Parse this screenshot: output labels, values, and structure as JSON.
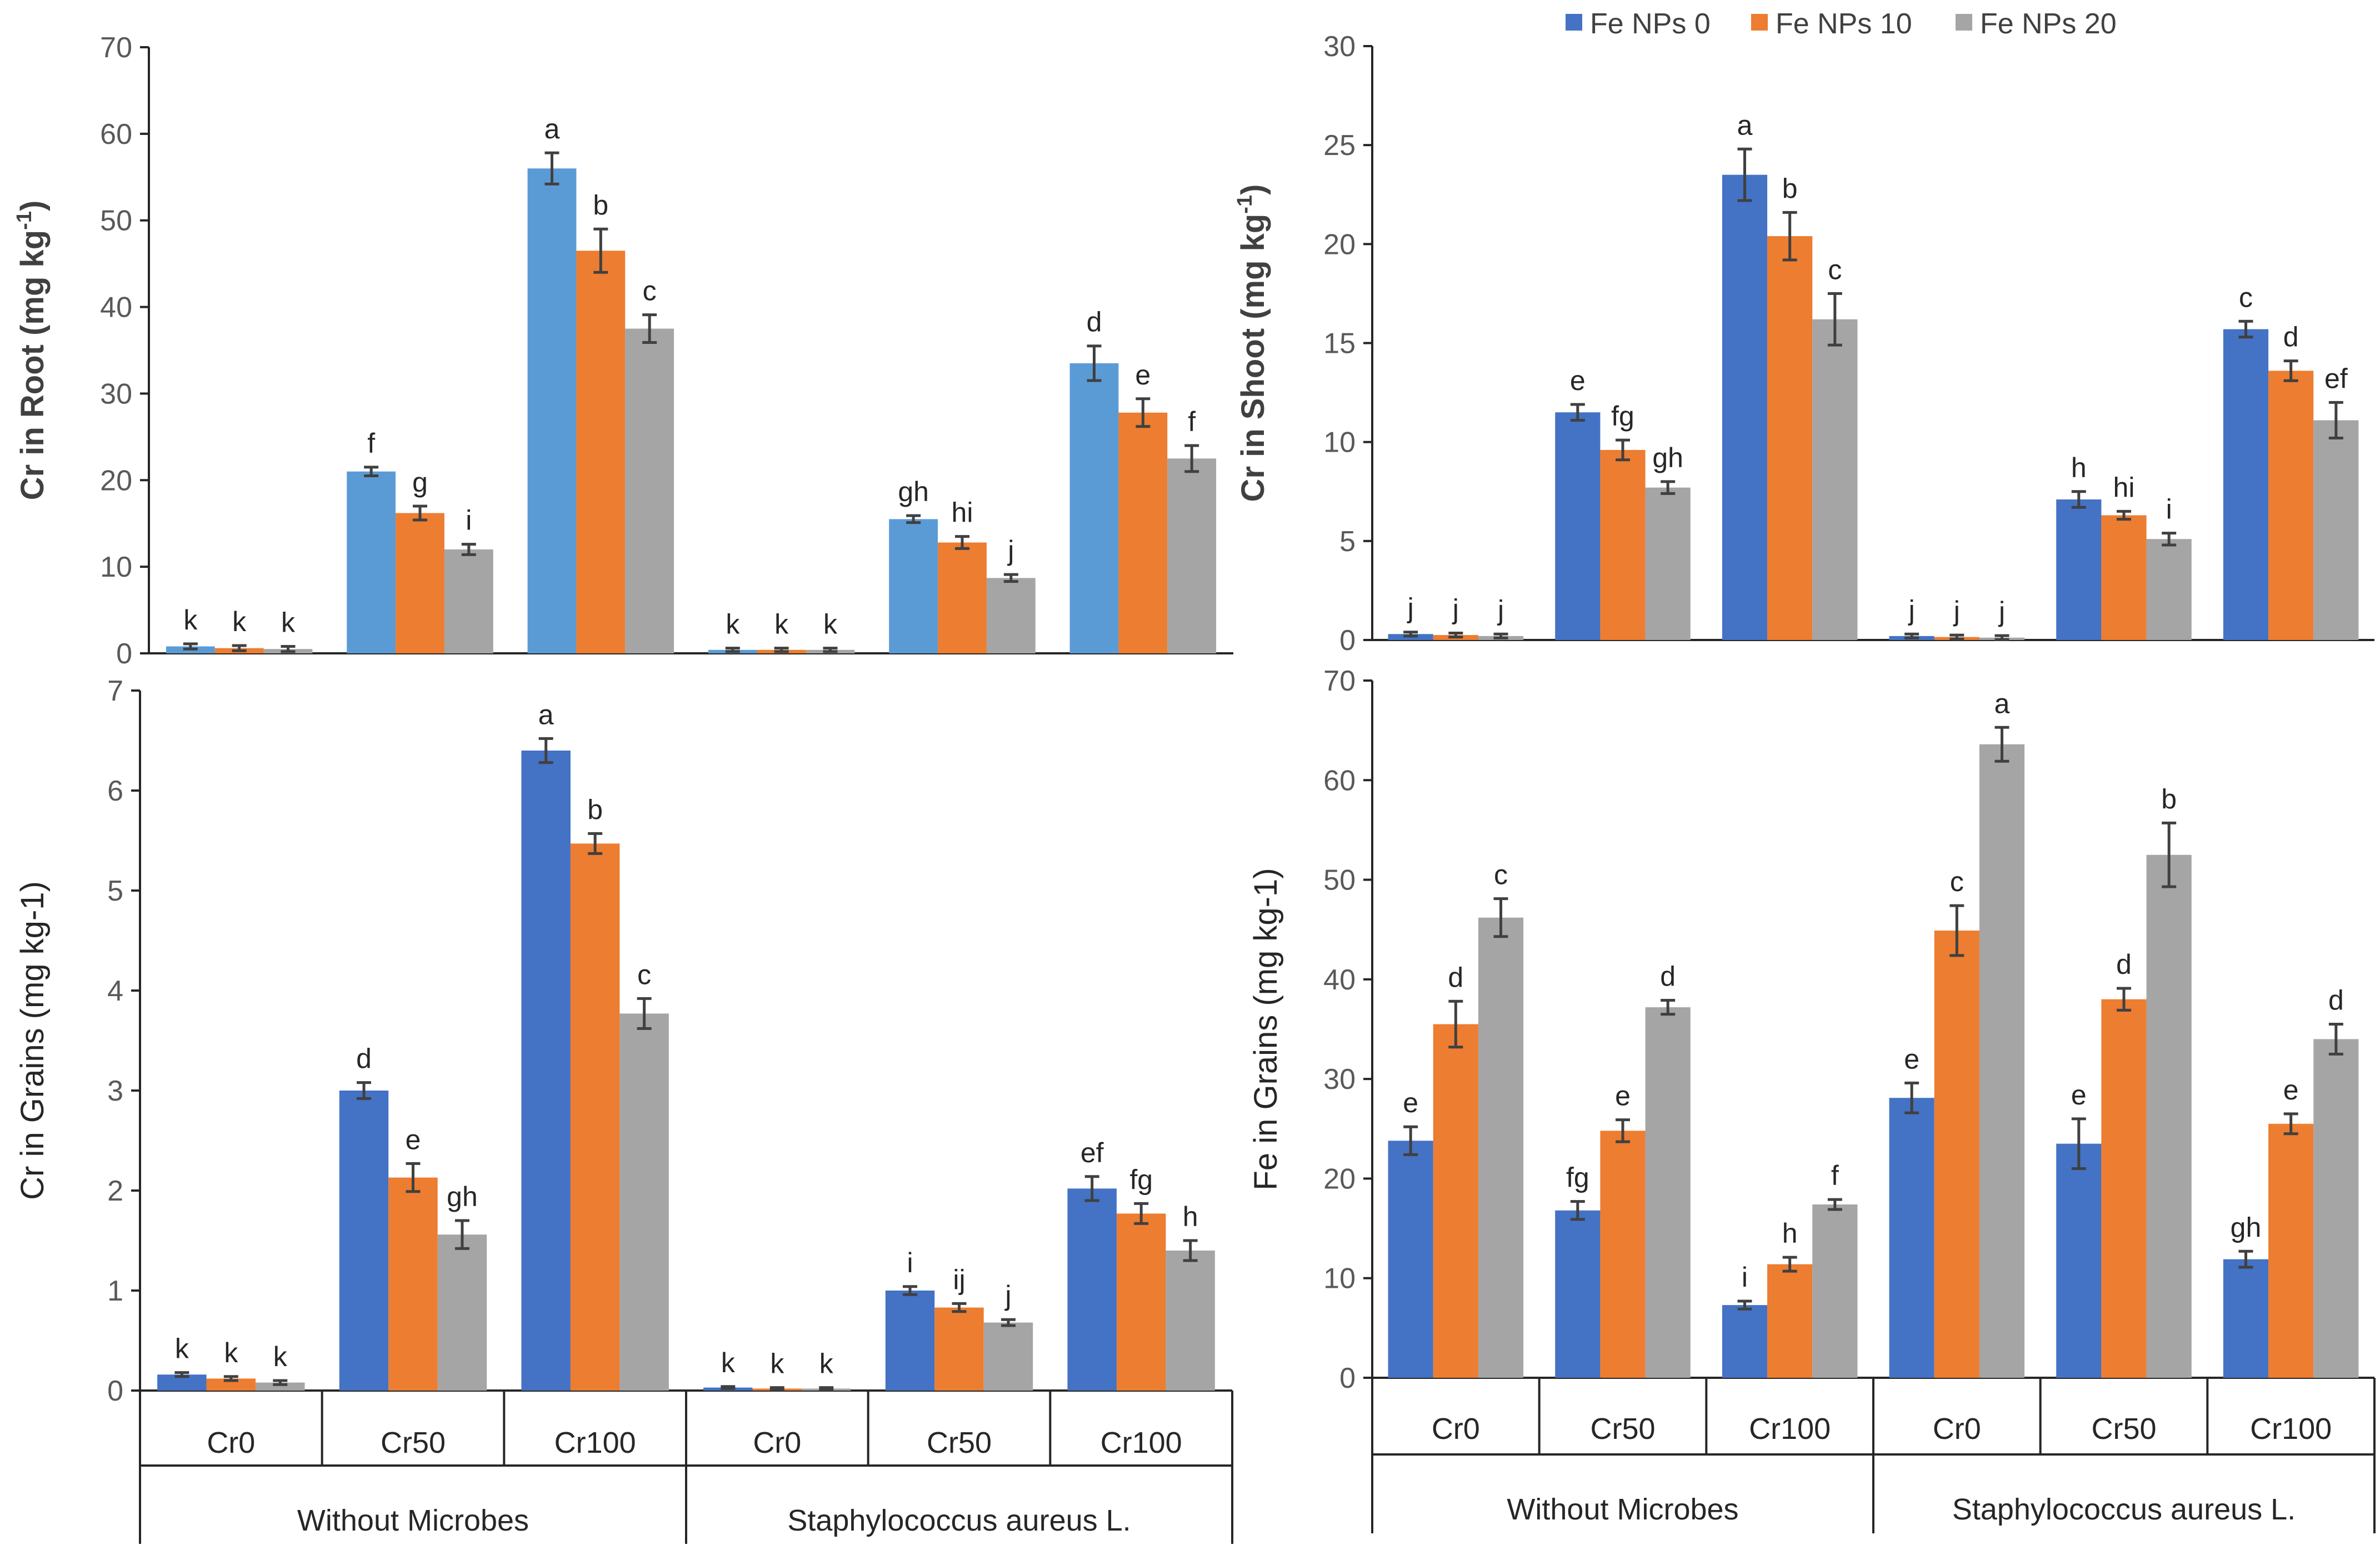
{
  "legend": {
    "series": [
      "Fe NPs 0",
      "Fe NPs 10",
      "Fe NPs 20"
    ],
    "colors": [
      "#4472C4",
      "#ED7D31",
      "#A5A5A5"
    ]
  },
  "chart_data": [
    {
      "id": "root",
      "type": "bar",
      "ylabel": "Cr in Root (mg kg",
      "ylabel_sup": "-1",
      "ylabel_end": ")",
      "ylim": [
        0,
        70
      ],
      "yticks": [
        0,
        10,
        20,
        30,
        40,
        50,
        60,
        70
      ],
      "categories": [
        "Cr0",
        "Cr50",
        "Cr100",
        "Cr0",
        "Cr50",
        "Cr100"
      ],
      "groups": [
        "Without Microbes",
        "Staphylococcus aureus L."
      ],
      "colors": [
        "#5B9BD5",
        "#ED7D31",
        "#A5A5A5"
      ],
      "series": [
        {
          "name": "Fe NPs 0",
          "values": [
            0.8,
            21,
            56,
            0.4,
            15.5,
            33.5
          ],
          "errors": [
            0.3,
            0.5,
            1.8,
            0.2,
            0.4,
            2
          ],
          "labels": [
            "k",
            "f",
            "a",
            "k",
            "gh",
            "d"
          ]
        },
        {
          "name": "Fe NPs 10",
          "values": [
            0.6,
            16.2,
            46.5,
            0.4,
            12.8,
            27.8
          ],
          "errors": [
            0.3,
            0.8,
            2.5,
            0.2,
            0.7,
            1.6
          ],
          "labels": [
            "k",
            "g",
            "b",
            "k",
            "hi",
            "e"
          ]
        },
        {
          "name": "Fe NPs 20",
          "values": [
            0.5,
            12,
            37.5,
            0.4,
            8.7,
            22.5
          ],
          "errors": [
            0.3,
            0.6,
            1.6,
            0.2,
            0.4,
            1.5
          ],
          "labels": [
            "k",
            "i",
            "c",
            "k",
            "j",
            "f"
          ]
        }
      ]
    },
    {
      "id": "shoot",
      "type": "bar",
      "ylabel": "Cr in Shoot (mg kg",
      "ylabel_sup": "-1",
      "ylabel_end": ")",
      "ylim": [
        0,
        30
      ],
      "yticks": [
        0,
        5,
        10,
        15,
        20,
        25,
        30
      ],
      "categories": [
        "Cr0",
        "Cr50",
        "Cr100",
        "Cr0",
        "Cr50",
        "Cr100"
      ],
      "groups": [
        "Without Microbes",
        "Staphylococcus aureus L."
      ],
      "colors": [
        "#4472C4",
        "#ED7D31",
        "#A5A5A5"
      ],
      "series": [
        {
          "name": "Fe NPs 0",
          "values": [
            0.3,
            11.5,
            23.5,
            0.2,
            7.1,
            15.7
          ],
          "errors": [
            0.1,
            0.4,
            1.3,
            0.1,
            0.4,
            0.4
          ],
          "labels": [
            "j",
            "e",
            "a",
            "j",
            "h",
            "c"
          ]
        },
        {
          "name": "Fe NPs 10",
          "values": [
            0.25,
            9.6,
            20.4,
            0.15,
            6.3,
            13.6
          ],
          "errors": [
            0.1,
            0.5,
            1.2,
            0.1,
            0.2,
            0.5
          ],
          "labels": [
            "j",
            "fg",
            "b",
            "j",
            "hi",
            "d"
          ]
        },
        {
          "name": "Fe NPs 20",
          "values": [
            0.2,
            7.7,
            16.2,
            0.12,
            5.1,
            11.1
          ],
          "errors": [
            0.1,
            0.3,
            1.3,
            0.1,
            0.3,
            0.9
          ],
          "labels": [
            "j",
            "gh",
            "c",
            "j",
            "i",
            "ef"
          ]
        }
      ]
    },
    {
      "id": "grains_cr",
      "type": "bar",
      "ylabel": "Cr in Grains (mg kg-1)",
      "ylim": [
        0,
        7
      ],
      "yticks": [
        0,
        1,
        2,
        3,
        4,
        5,
        6,
        7
      ],
      "categories": [
        "Cr0",
        "Cr50",
        "Cr100",
        "Cr0",
        "Cr50",
        "Cr100"
      ],
      "groups": [
        "Without Microbes",
        "Staphylococcus aureus L."
      ],
      "colors": [
        "#4472C4",
        "#ED7D31",
        "#A5A5A5"
      ],
      "series": [
        {
          "name": "Fe NPs 0",
          "values": [
            0.16,
            3.0,
            6.4,
            0.03,
            1.0,
            2.02
          ],
          "errors": [
            0.02,
            0.08,
            0.12,
            0.01,
            0.04,
            0.12
          ],
          "labels": [
            "k",
            "d",
            "a",
            "k",
            "i",
            "ef"
          ]
        },
        {
          "name": "Fe NPs 10",
          "values": [
            0.12,
            2.13,
            5.47,
            0.02,
            0.83,
            1.77
          ],
          "errors": [
            0.02,
            0.14,
            0.1,
            0.01,
            0.04,
            0.1
          ],
          "labels": [
            "k",
            "e",
            "b",
            "k",
            "ij",
            "fg"
          ]
        },
        {
          "name": "Fe NPs 20",
          "values": [
            0.08,
            1.56,
            3.77,
            0.02,
            0.68,
            1.4
          ],
          "errors": [
            0.02,
            0.14,
            0.15,
            0.01,
            0.03,
            0.1
          ],
          "labels": [
            "k",
            "gh",
            "c",
            "k",
            "j",
            "h"
          ]
        }
      ]
    },
    {
      "id": "grains_fe",
      "type": "bar",
      "ylabel": "Fe in Grains (mg kg-1)",
      "ylim": [
        0,
        70
      ],
      "yticks": [
        0,
        10,
        20,
        30,
        40,
        50,
        60,
        70
      ],
      "categories": [
        "Cr0",
        "Cr50",
        "Cr100",
        "Cr0",
        "Cr50",
        "Cr100"
      ],
      "groups": [
        "Without Microbes",
        "Staphylococcus aureus L."
      ],
      "colors": [
        "#4472C4",
        "#ED7D31",
        "#A5A5A5"
      ],
      "series": [
        {
          "name": "Fe NPs 0",
          "values": [
            23.8,
            16.8,
            7.3,
            28.1,
            23.5,
            11.9
          ],
          "errors": [
            1.4,
            0.9,
            0.4,
            1.5,
            2.5,
            0.8
          ],
          "labels": [
            "e",
            "fg",
            "i",
            "e",
            "e",
            "gh"
          ]
        },
        {
          "name": "Fe NPs 10",
          "values": [
            35.5,
            24.8,
            11.4,
            44.9,
            38.0,
            25.5
          ],
          "errors": [
            2.3,
            1.1,
            0.7,
            2.5,
            1.1,
            1.0
          ],
          "labels": [
            "d",
            "e",
            "h",
            "c",
            "d",
            "e"
          ]
        },
        {
          "name": "Fe NPs 20",
          "values": [
            46.2,
            37.2,
            17.4,
            63.6,
            52.5,
            34.0
          ],
          "errors": [
            1.9,
            0.7,
            0.5,
            1.7,
            3.2,
            1.5
          ],
          "labels": [
            "c",
            "d",
            "f",
            "a",
            "b",
            "d"
          ]
        }
      ]
    }
  ]
}
